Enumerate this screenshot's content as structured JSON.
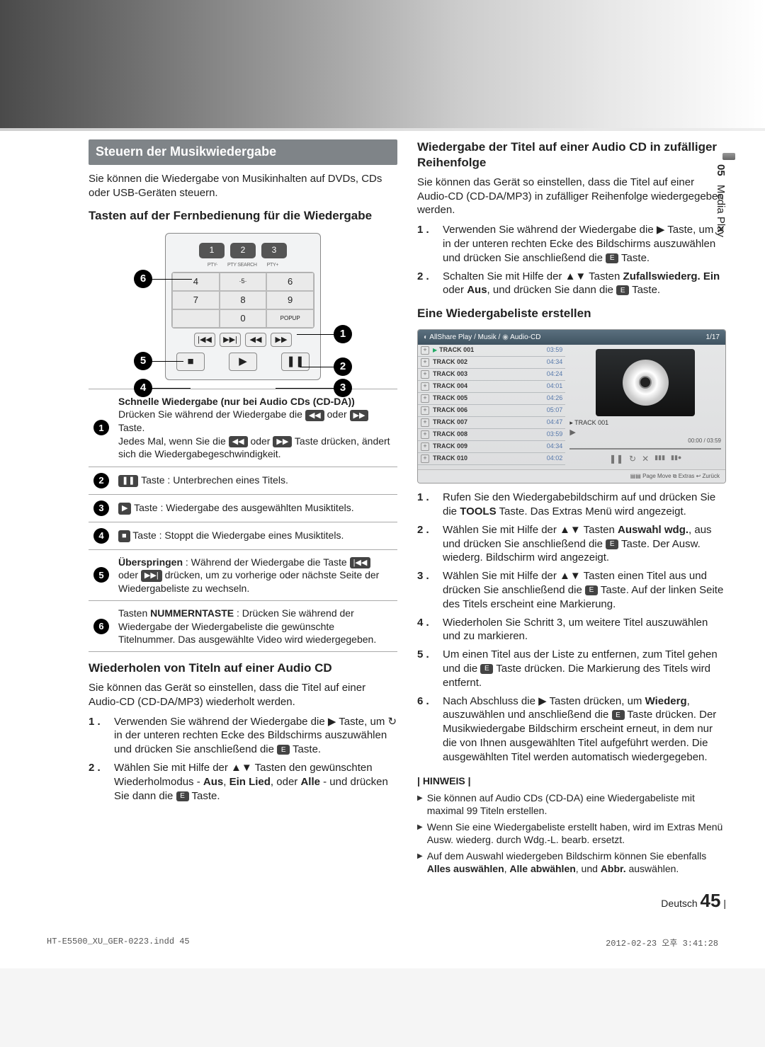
{
  "chapter": {
    "num": "05",
    "title": "Media Play"
  },
  "left": {
    "box_title": "Steuern der Musikwiedergabe",
    "intro": "Sie können die Wiedergabe von Musikinhalten auf DVDs, CDs oder USB-Geräten steuern.",
    "h_remote": "Tasten auf der Fernbedienung für die Wiedergabe",
    "remote": {
      "row1": [
        "1",
        "2",
        "3"
      ],
      "lbls1": [
        "PTY-",
        "PTY SEARCH",
        "PTY+"
      ],
      "row2": [
        "4",
        "5",
        "6"
      ],
      "row3": [
        "7",
        "8",
        "9"
      ],
      "row4": [
        "",
        "0",
        "POPUP"
      ],
      "nav": [
        "|◀◀",
        "▶▶|",
        "◀◀",
        "▶▶"
      ],
      "bar": [
        "■",
        "▶",
        "❚❚"
      ]
    },
    "callouts": [
      "1",
      "2",
      "3",
      "4",
      "5",
      "6"
    ],
    "table": [
      {
        "n": "1",
        "html": "<b>Schnelle Wiedergabe (nur bei Audio CDs (CD-DA))</b><br>Drücken Sie während der Wiedergabe die <span class='icon-box'>◀◀</span> oder <span class='icon-box'>▶▶</span> Taste.<br>Jedes Mal, wenn Sie die <span class='icon-box'>◀◀</span> oder <span class='icon-box'>▶▶</span> Taste drücken, ändert sich die Wiedergabegeschwindigkeit."
      },
      {
        "n": "2",
        "html": "<span class='icon-box'>❚❚</span> Taste : Unterbrechen eines Titels."
      },
      {
        "n": "3",
        "html": "<span class='icon-box'>▶</span> Taste : Wiedergabe des ausgewählten Musiktitels."
      },
      {
        "n": "4",
        "html": "<span class='icon-box'>■</span> Taste : Stoppt die Wiedergabe eines Musiktitels."
      },
      {
        "n": "5",
        "html": "<b>Überspringen</b> : Während der Wiedergabe die Taste <span class='icon-box'>|◀◀</span> oder <span class='icon-box'>▶▶|</span> drücken, um zu vorherige oder nächste Seite der Wiedergabeliste zu wechseln."
      },
      {
        "n": "6",
        "html": "Tasten <b>NUMMERNTASTE</b> : Drücken Sie während der Wiedergabe der Wiedergabeliste die gewünschte Titelnummer. Das ausgewählte Video wird wiedergegeben."
      }
    ],
    "h_repeat": "Wiederholen von Titeln auf einer Audio CD",
    "repeat_intro": "Sie können das Gerät so einstellen, dass die Titel auf einer Audio-CD (CD-DA/MP3) wiederholt werden.",
    "repeat_steps": [
      "Verwenden Sie während der Wiedergabe die ▶ Taste, um ↻ in der unteren rechten Ecke des Bildschirms auszuwählen und drücken Sie anschließend die <span class='enter-icon'>E</span> Taste.",
      "Wählen Sie mit Hilfe der ▲▼ Tasten den gewünschten Wiederholmodus - <b>Aus</b>, <b>Ein Lied</b>, oder <b>Alle</b> - und drücken Sie dann die <span class='enter-icon'>E</span> Taste."
    ]
  },
  "right": {
    "h_shuffle": "Wiedergabe der Titel auf einer Audio CD in zufälliger Reihenfolge",
    "shuffle_intro": "Sie können das Gerät so einstellen, dass die Titel auf einer Audio-CD (CD-DA/MP3) in zufälliger Reihenfolge wiedergegeben werden.",
    "shuffle_steps": [
      "Verwenden Sie während der Wiedergabe die ▶ Taste, um ✕ in der unteren rechten Ecke des Bildschirms auszuwählen und drücken Sie anschließend die <span class='enter-icon'>E</span> Taste.",
      "Schalten Sie mit Hilfe der ▲▼ Tasten <b>Zufallswiederg. Ein</b> oder <b>Aus</b>, und drücken Sie dann die <span class='enter-icon'>E</span> Taste."
    ],
    "h_playlist": "Eine Wiedergabeliste erstellen",
    "screen": {
      "breadcrumb": "AllShare Play / Musik /",
      "source": "Audio-CD",
      "counter": "1/17",
      "tracks": [
        {
          "name": "TRACK 001",
          "time": "03:59",
          "playing": true
        },
        {
          "name": "TRACK 002",
          "time": "04:34"
        },
        {
          "name": "TRACK 003",
          "time": "04:24"
        },
        {
          "name": "TRACK 004",
          "time": "04:01"
        },
        {
          "name": "TRACK 005",
          "time": "04:26"
        },
        {
          "name": "TRACK 006",
          "time": "05:07"
        },
        {
          "name": "TRACK 007",
          "time": "04:47"
        },
        {
          "name": "TRACK 008",
          "time": "03:59"
        },
        {
          "name": "TRACK 009",
          "time": "04:34"
        },
        {
          "name": "TRACK 010",
          "time": "04:02"
        }
      ],
      "now_playing": "TRACK 001",
      "time": "00:00 / 03:59",
      "footer": "▤▤ Page Move  ⧉ Extras  ↩ Zurück"
    },
    "playlist_steps": [
      "Rufen Sie den Wiedergabebildschirm auf und drücken Sie die <b>TOOLS</b> Taste. Das Extras Menü wird angezeigt.",
      "Wählen Sie mit Hilfe der ▲▼ Tasten <b>Auswahl wdg.</b>, aus und drücken Sie anschließend die <span class='enter-icon'>E</span> Taste. Der Ausw. wiederg. Bildschirm wird angezeigt.",
      "Wählen Sie mit Hilfe der ▲▼ Tasten einen Titel aus und drücken Sie anschließend die <span class='enter-icon'>E</span> Taste. Auf der linken Seite des Titels erscheint eine Markierung.",
      "Wiederholen Sie Schritt 3, um weitere Titel auszuwählen und zu markieren.",
      "Um einen Titel aus der Liste zu entfernen, zum Titel gehen und die <span class='enter-icon'>E</span> Taste drücken. Die Markierung des Titels wird entfernt.",
      "Nach Abschluss die ▶ Tasten drücken, um <b>Wiederg</b>, auszuwählen und anschließend die <span class='enter-icon'>E</span> Taste drücken. Der Musikwiedergabe Bildschirm erscheint erneut, in dem nur die von Ihnen ausgewählten Titel aufgeführt werden. Die ausgewählten Titel werden automatisch wiedergegeben."
    ],
    "note_label": "HINWEIS",
    "notes": [
      "Sie können auf Audio CDs (CD-DA) eine Wiedergabeliste mit maximal 99 Titeln erstellen.",
      "Wenn Sie eine Wiedergabeliste erstellt haben, wird im Extras Menü Ausw. wiederg. durch Wdg.-L. bearb. ersetzt.",
      "Auf dem Auswahl wiedergeben Bildschirm können Sie ebenfalls <b>Alles auswählen</b>, <b>Alle abwählen</b>, und <b>Abbr.</b> auswählen."
    ],
    "page_lang": "Deutsch",
    "page_num": "45"
  },
  "print": {
    "file": "HT-E5500_XU_GER-0223.indd   45",
    "date": "2012-02-23   오후 3:41:28"
  }
}
